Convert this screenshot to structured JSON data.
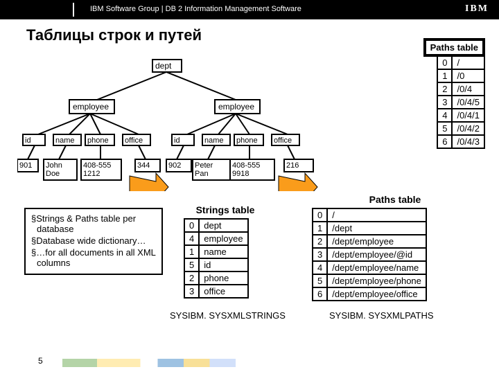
{
  "header": {
    "text": "IBM Software Group  |  DB 2 Information Management Software",
    "logo": "IBM"
  },
  "title": "Таблицы строк и путей",
  "tree": {
    "dept": "dept",
    "employee": "employee",
    "leaves1": [
      "id",
      "name",
      "phone",
      "office"
    ],
    "vals1": [
      "901",
      "John\nDoe",
      "408-555\n1212",
      "344"
    ],
    "leaves2": [
      "id",
      "name",
      "phone",
      "office"
    ],
    "vals2": [
      "902",
      "Peter\nPan",
      "408-555\n9918",
      "216"
    ]
  },
  "pathsTable1": {
    "title": "Paths table",
    "rows": [
      [
        "0",
        "/"
      ],
      [
        "1",
        "/0"
      ],
      [
        "2",
        "/0/4"
      ],
      [
        "3",
        "/0/4/5"
      ],
      [
        "4",
        "/0/4/1"
      ],
      [
        "5",
        "/0/4/2"
      ],
      [
        "6",
        "/0/4/3"
      ]
    ]
  },
  "pathsTable2": {
    "title": "Paths table",
    "rows": [
      [
        "0",
        "/"
      ],
      [
        "1",
        "/dept"
      ],
      [
        "2",
        "/dept/employee"
      ],
      [
        "3",
        "/dept/employee/@id"
      ],
      [
        "4",
        "/dept/employee/name"
      ],
      [
        "5",
        "/dept/employee/phone"
      ],
      [
        "6",
        "/dept/employee/office"
      ]
    ],
    "caption": "SYSIBM. SYSXMLPATHS"
  },
  "stringsTable": {
    "title": "Strings table",
    "rows": [
      [
        "0",
        "dept"
      ],
      [
        "4",
        "employee"
      ],
      [
        "1",
        "name"
      ],
      [
        "5",
        "id"
      ],
      [
        "2",
        "phone"
      ],
      [
        "3",
        "office"
      ]
    ],
    "caption": "SYSIBM. SYSXMLSTRINGS"
  },
  "bullets": [
    "§Strings & Paths table per database",
    "§Database wide dictionary…",
    "§…for all documents in all XML columns"
  ],
  "pagenum": "5"
}
